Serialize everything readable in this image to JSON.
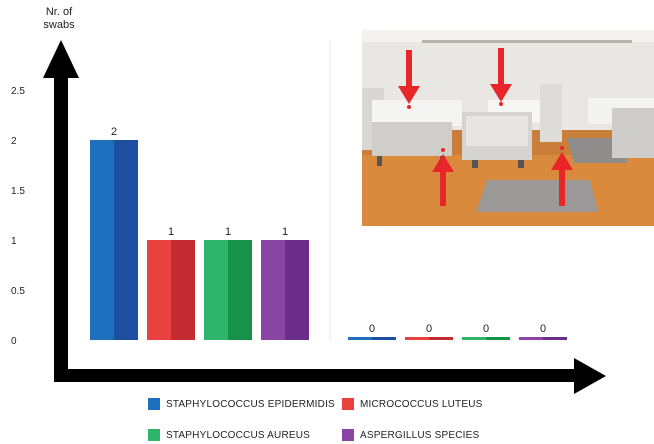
{
  "chart_data": {
    "type": "bar",
    "ylabel_line1": "Nr. of",
    "ylabel_line2": "swabs",
    "ylim": [
      0,
      2.5
    ],
    "yticks": [
      "0",
      "0.5",
      "1",
      "1.5",
      "2",
      "2.5"
    ],
    "groups": [
      {
        "values": [
          2,
          1,
          1,
          1
        ]
      },
      {
        "values": [
          0,
          0,
          0,
          0
        ]
      }
    ],
    "series": [
      {
        "name": "STAPHYLOCOCCUS EPIDERMIDIS",
        "color": "#1f6fbf",
        "shade": "#1d4ea0"
      },
      {
        "name": "MICROCOCCUS LUTEUS",
        "color": "#e8413e",
        "shade": "#c22b32"
      },
      {
        "name": "STAPHYLOCOCCUS AUREUS",
        "color": "#2eb56b",
        "shade": "#17924a"
      },
      {
        "name": "ASPERGILLUS SPECIES",
        "color": "#8a44a3",
        "shade": "#6a2d8a"
      }
    ],
    "grid": false,
    "legend_position": "bottom"
  },
  "photo": {
    "icon": "hospital-room-photo",
    "arrow_color": "#e8262a"
  }
}
